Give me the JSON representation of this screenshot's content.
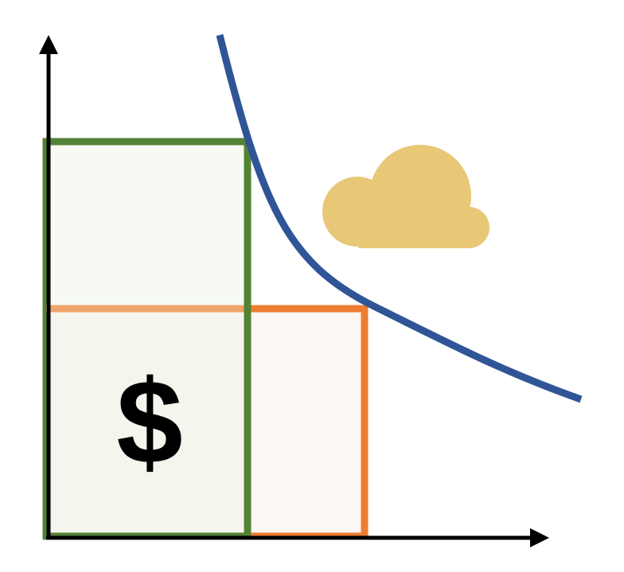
{
  "diagram": {
    "dollar_label": "$",
    "colors": {
      "background": "#ffffff",
      "axis": "#000000",
      "curve": "#2f5597",
      "green_rect_stroke": "#548235",
      "green_rect_fill": "#f7f9f3",
      "orange_rect_stroke": "#ed7d31",
      "orange_rect_fill": "#fdf8f3",
      "overlap_fill": "#f5f5ee",
      "cloud": "#e8c777",
      "dollar": "#000000"
    },
    "icons": {
      "cloud": "cloud-icon",
      "dollar": "dollar-sign"
    }
  }
}
